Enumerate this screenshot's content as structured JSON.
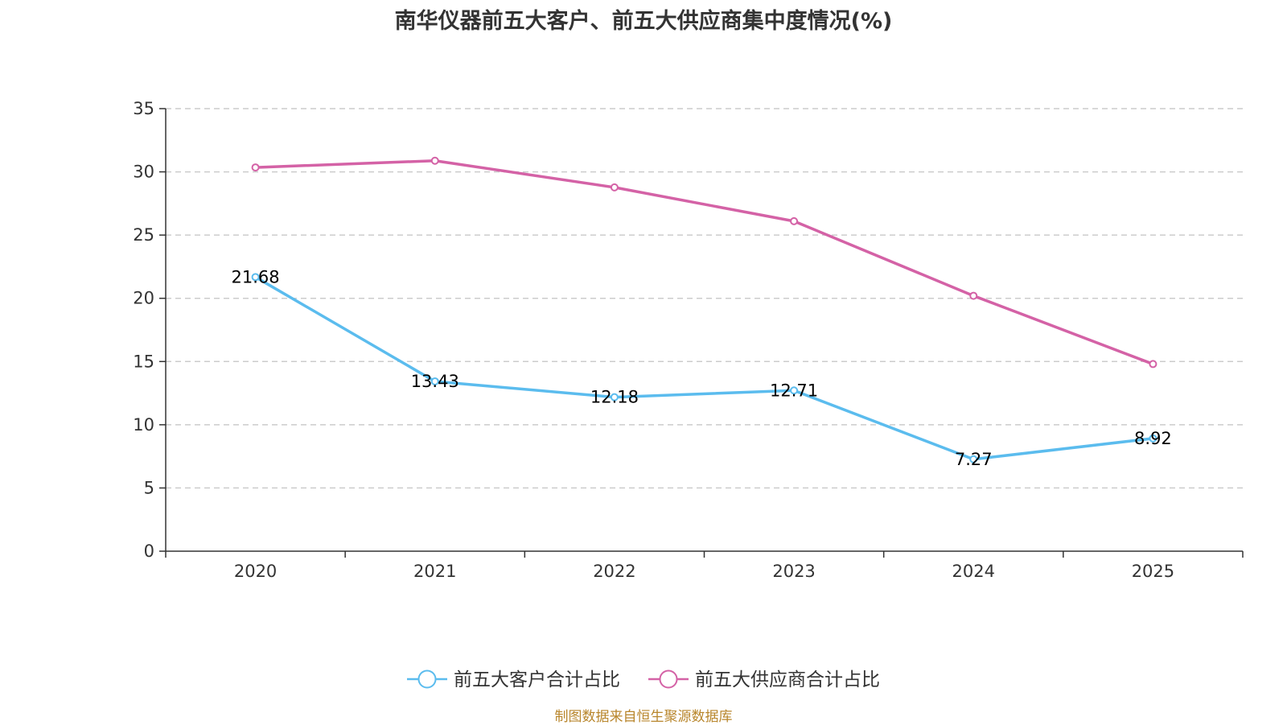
{
  "chart_data": {
    "type": "line",
    "title": "南华仪器前五大客户、前五大供应商集中度情况(%)",
    "categories": [
      "2020",
      "2021",
      "2022",
      "2023",
      "2024",
      "2025"
    ],
    "ylim": [
      0,
      35
    ],
    "yticks": [
      0,
      5,
      10,
      15,
      20,
      25,
      30,
      35
    ],
    "grid": true,
    "legend_position": "bottom-center",
    "series": [
      {
        "name": "前五大客户合计占比",
        "color": "#5bbcee",
        "values": [
          21.68,
          13.43,
          12.18,
          12.71,
          7.27,
          8.92
        ],
        "labels": [
          "21.68",
          "13.43",
          "12.18",
          "12.71",
          "7.27",
          "8.92"
        ],
        "show_labels": true
      },
      {
        "name": "前五大供应商合计占比",
        "color": "#d462a6",
        "values": [
          30.35,
          30.88,
          28.77,
          26.1,
          20.2,
          14.8
        ],
        "show_labels": false
      }
    ]
  },
  "source_note": "制图数据来自恒生聚源数据库"
}
